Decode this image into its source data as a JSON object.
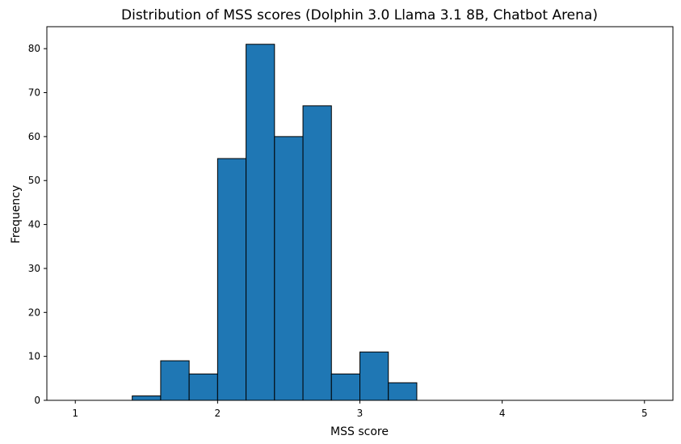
{
  "chart_data": {
    "type": "bar",
    "title": "Distribution of MSS scores (Dolphin 3.0 Llama 3.1 8B, Chatbot Arena)",
    "xlabel": "MSS score",
    "ylabel": "Frequency",
    "xlim": [
      0.8,
      5.2
    ],
    "ylim": [
      0,
      85
    ],
    "xticks": [
      1,
      2,
      3,
      4,
      5
    ],
    "yticks": [
      0,
      10,
      20,
      30,
      40,
      50,
      60,
      70,
      80
    ],
    "bin_width": 0.2,
    "bins": [
      {
        "start": 1.0,
        "end": 1.2,
        "value": 0
      },
      {
        "start": 1.2,
        "end": 1.4,
        "value": 0
      },
      {
        "start": 1.4,
        "end": 1.6,
        "value": 1
      },
      {
        "start": 1.6,
        "end": 1.8,
        "value": 9
      },
      {
        "start": 1.8,
        "end": 2.0,
        "value": 6
      },
      {
        "start": 2.0,
        "end": 2.2,
        "value": 55
      },
      {
        "start": 2.2,
        "end": 2.4,
        "value": 81
      },
      {
        "start": 2.4,
        "end": 2.6,
        "value": 60
      },
      {
        "start": 2.6,
        "end": 2.8,
        "value": 67
      },
      {
        "start": 2.8,
        "end": 3.0,
        "value": 6
      },
      {
        "start": 3.0,
        "end": 3.2,
        "value": 11
      },
      {
        "start": 3.2,
        "end": 3.4,
        "value": 4
      },
      {
        "start": 3.4,
        "end": 3.6,
        "value": 0
      },
      {
        "start": 3.6,
        "end": 3.8,
        "value": 0
      },
      {
        "start": 3.8,
        "end": 4.0,
        "value": 0
      },
      {
        "start": 4.0,
        "end": 4.2,
        "value": 0
      },
      {
        "start": 4.2,
        "end": 4.4,
        "value": 0
      },
      {
        "start": 4.4,
        "end": 4.6,
        "value": 0
      },
      {
        "start": 4.6,
        "end": 4.8,
        "value": 0
      },
      {
        "start": 4.8,
        "end": 5.0,
        "value": 0
      }
    ],
    "bar_color": "#1f77b4",
    "edge_color": "#000000",
    "grid": false
  }
}
